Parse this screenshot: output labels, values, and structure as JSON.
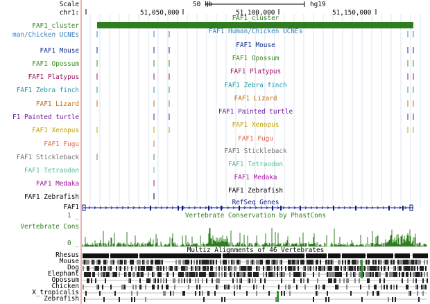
{
  "ruler": {
    "scale_label": "Scale",
    "scale_value": "50 kb",
    "assembly": "hg19",
    "chrom": "chr1:",
    "ticks": [
      "51,050,000",
      "51,100,000",
      "51,150,000"
    ]
  },
  "tracks": [
    {
      "label": "FAF1_cluster",
      "center": "FAF1_cluster",
      "color": "#2e7d1e"
    },
    {
      "label": "man/Chicken UCNEs",
      "center": "FAF1 Human/Chicken UCNEs",
      "color": "#3a7fc0"
    },
    {
      "label": "FAF1 Mouse",
      "center": "FAF1 Mouse",
      "color": "#0b2a8a"
    },
    {
      "label": "FAF1 Opossum",
      "center": "FAF1 Opossum",
      "color": "#3a8a1e"
    },
    {
      "label": "FAF1 Platypus",
      "center": "FAF1 Platypus",
      "color": "#9a1060"
    },
    {
      "label": "FAF1 Zebra finch",
      "center": "FAF1 Zebra finch",
      "color": "#1a9aa8"
    },
    {
      "label": "FAF1 Lizard",
      "center": "FAF1 Lizard",
      "color": "#c06a10"
    },
    {
      "label": "F1 Painted turtle",
      "center": "FAF1 Painted turtle",
      "color": "#6a10a0"
    },
    {
      "label": "FAF1 Xenopus",
      "center": "FAF1 Xenopus",
      "color": "#c0a000"
    },
    {
      "label": "FAF1 Fugu",
      "center": "FAF1 Fugu",
      "color": "#e0604a"
    },
    {
      "label": "FAF1 Stickleback",
      "center": "FAF1 Stickleback",
      "color": "#707070"
    },
    {
      "label": "FAF1 Tetraodon",
      "center": "FAF1 Tetraodon",
      "color": "#50c090"
    },
    {
      "label": "FAF1 Medaka",
      "center": "FAF1 Medaka",
      "color": "#a010a0"
    },
    {
      "label": "FAF1 Zebrafish",
      "center": "FAF1 Zebrafish",
      "color": "#000000"
    }
  ],
  "refseq": {
    "center": "RefSeq Genes",
    "gene_label": "FAF1",
    "color": "#0a1a8a"
  },
  "conservation": {
    "center": "Vertebrate Conservation by PhastCons",
    "label": "Vertebrate Cons",
    "ymax": "1 _",
    "ymin": "0 _",
    "color": "#2e7d1e"
  },
  "multiz": {
    "center": "Multiz Alignments of 46 Vertebrates",
    "species": [
      "Rhesus",
      "Mouse",
      "Dog",
      "Elephant",
      "Opossum",
      "Chicken",
      "X_tropicalis",
      "Zebrafish"
    ]
  }
}
